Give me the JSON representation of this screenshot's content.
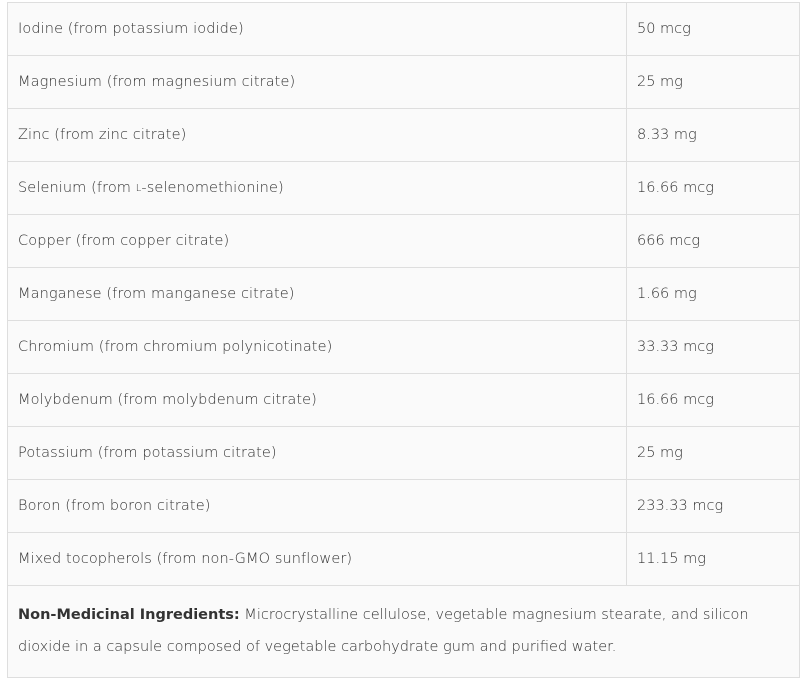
{
  "rows": [
    {
      "name": "Iodine (from potassium iodide)",
      "value": "50 mcg"
    },
    {
      "name": "Magnesium (from magnesium citrate)",
      "value": "25 mg"
    },
    {
      "name": "Zinc (from zinc citrate)",
      "value": "8.33 mg"
    },
    {
      "name_prefix": "Selenium (from ",
      "name_sub": "L",
      "name_suffix": "-selenomethionine)",
      "value": "16.66 mcg"
    },
    {
      "name": "Copper (from copper citrate)",
      "value": "666 mcg"
    },
    {
      "name": "Manganese (from manganese citrate)",
      "value": "1.66 mg"
    },
    {
      "name": "Chromium (from chromium polynicotinate)",
      "value": "33.33 mcg"
    },
    {
      "name": "Molybdenum (from molybdenum citrate)",
      "value": "16.66 mcg"
    },
    {
      "name": "Potassium (from potassium citrate)",
      "value": "25 mg"
    },
    {
      "name": "Boron (from boron citrate)",
      "value": "233.33 mcg"
    },
    {
      "name": "Mixed tocopherols (from non-GMO sunflower)",
      "value": "11.15 mg"
    }
  ],
  "footer": {
    "label": "Non-Medicinal Ingredients:",
    "text": " Microcrystalline cellulose, vegetable magnesium stearate, and silicon dioxide in a capsule composed of vegetable carbohydrate gum and purified water."
  }
}
